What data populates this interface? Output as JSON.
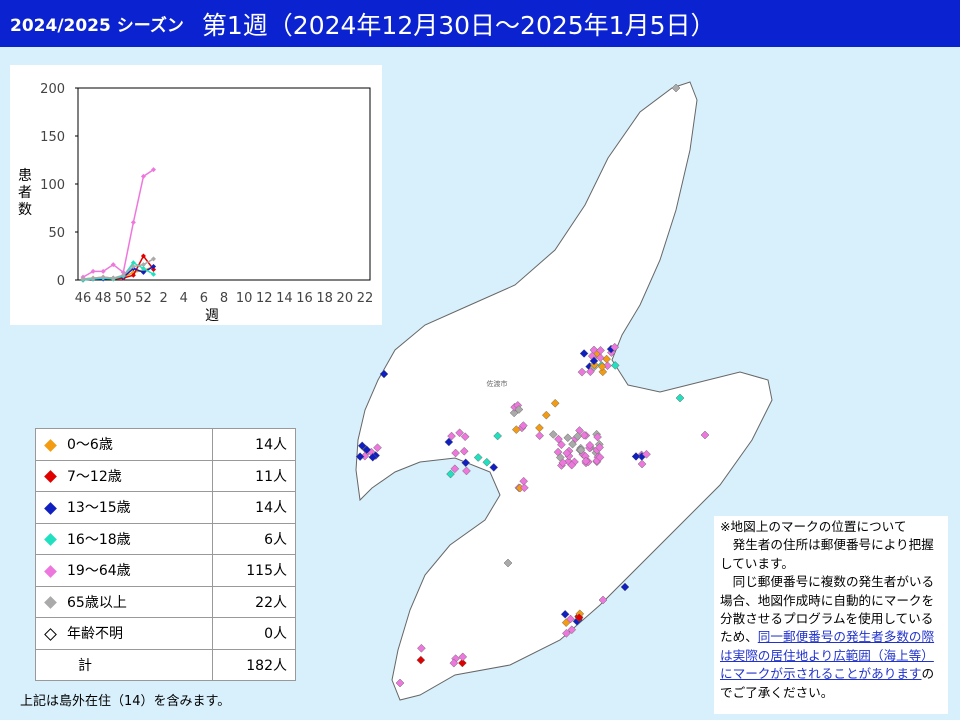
{
  "header": {
    "season": "2024/2025 シーズン",
    "week": "第1週（2024年12月30日～2025年1月5日）"
  },
  "chart_data": {
    "type": "line",
    "ylabel": "患者数",
    "xlabel": "週",
    "categories": [
      "46",
      null,
      "48",
      null,
      "50",
      null,
      "52",
      null,
      "2",
      null,
      "4",
      null,
      "6",
      null,
      "8",
      null,
      "10",
      null,
      "12",
      null,
      "14",
      null,
      "16",
      null,
      "18",
      null,
      "20",
      null,
      "22"
    ],
    "ylim": [
      0,
      200
    ],
    "yticks": [
      0,
      50,
      100,
      150,
      200
    ],
    "series": [
      {
        "name": "0～6歳",
        "color": "#f39c12",
        "values": [
          1,
          2,
          3,
          2,
          3,
          8,
          10,
          14,
          null,
          null,
          null,
          null,
          null,
          null,
          null,
          null,
          null,
          null,
          null,
          null,
          null,
          null,
          null,
          null,
          null,
          null,
          null,
          null,
          null
        ]
      },
      {
        "name": "7～12歳",
        "color": "#e00000",
        "values": [
          0,
          1,
          2,
          1,
          2,
          5,
          25,
          11,
          null,
          null,
          null,
          null,
          null,
          null,
          null,
          null,
          null,
          null,
          null,
          null,
          null,
          null,
          null,
          null,
          null,
          null,
          null,
          null,
          null
        ]
      },
      {
        "name": "13～15歳",
        "color": "#1020c0",
        "values": [
          0,
          1,
          1,
          2,
          3,
          12,
          8,
          14,
          null,
          null,
          null,
          null,
          null,
          null,
          null,
          null,
          null,
          null,
          null,
          null,
          null,
          null,
          null,
          null,
          null,
          null,
          null,
          null,
          null
        ]
      },
      {
        "name": "16～18歳",
        "color": "#20e0c0",
        "values": [
          0,
          1,
          2,
          1,
          4,
          18,
          12,
          6,
          null,
          null,
          null,
          null,
          null,
          null,
          null,
          null,
          null,
          null,
          null,
          null,
          null,
          null,
          null,
          null,
          null,
          null,
          null,
          null,
          null
        ]
      },
      {
        "name": "19～64歳",
        "color": "#ee77dd",
        "values": [
          3,
          9,
          9,
          16,
          8,
          60,
          108,
          115,
          null,
          null,
          null,
          null,
          null,
          null,
          null,
          null,
          null,
          null,
          null,
          null,
          null,
          null,
          null,
          null,
          null,
          null,
          null,
          null,
          null
        ]
      },
      {
        "name": "65歳以上",
        "color": "#aaaaaa",
        "values": [
          1,
          2,
          3,
          2,
          5,
          14,
          16,
          22,
          null,
          null,
          null,
          null,
          null,
          null,
          null,
          null,
          null,
          null,
          null,
          null,
          null,
          null,
          null,
          null,
          null,
          null,
          null,
          null,
          null
        ]
      }
    ]
  },
  "table": {
    "rows": [
      {
        "label": "0～6歳",
        "count": "14人",
        "color": "#f39c12",
        "marker": "filled"
      },
      {
        "label": "7～12歳",
        "count": "11人",
        "color": "#e00000",
        "marker": "filled"
      },
      {
        "label": "13～15歳",
        "count": "14人",
        "color": "#1020c0",
        "marker": "filled"
      },
      {
        "label": "16～18歳",
        "count": "6人",
        "color": "#20e0c0",
        "marker": "filled"
      },
      {
        "label": "19～64歳",
        "count": "115人",
        "color": "#ee77dd",
        "marker": "filled"
      },
      {
        "label": "65歳以上",
        "count": "22人",
        "color": "#aaaaaa",
        "marker": "filled"
      },
      {
        "label": "年齢不明",
        "count": "0人",
        "color": "#000000",
        "marker": "open"
      }
    ],
    "total_label": "計",
    "total": "182人",
    "footnote": "上記は島外在住（14）を含みます。"
  },
  "map": {
    "city": "佐渡市"
  },
  "note": {
    "heading": "※地図上のマークの位置について",
    "para1": "発生者の住所は郵便番号により把握しています。",
    "para2": "同じ郵便番号に複数の発生者がいる場合、地図作成時に自動的にマークを分散させるプログラムを使用しているため、",
    "link": "同一郵便番号の発生者多数の際は実際の居住地より広範囲（海上等）にマークが示されることがあります",
    "para2_end": "のでご了承ください。"
  }
}
